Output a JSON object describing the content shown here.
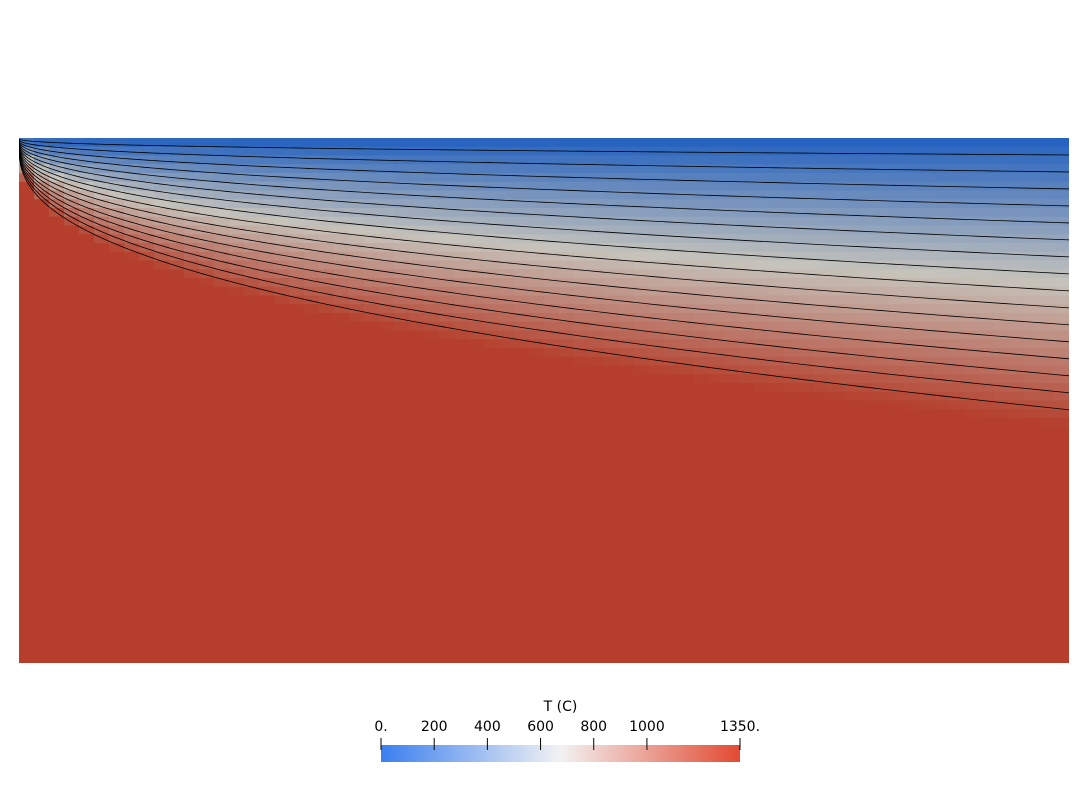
{
  "chart_data": {
    "type": "heatmap",
    "field": "T",
    "colormap": {
      "name": "Cool to Warm",
      "stops": [
        "#3b4cc0",
        "#dddddd",
        "#b40426"
      ],
      "domain_colors": {
        "low": "#2160c0",
        "mid": "#c6c3bb",
        "high": "#b53f2c"
      }
    },
    "contour_lines": 16,
    "colorbar": {
      "title": "T (C)",
      "range": [
        0,
        1350
      ],
      "ticks": [
        {
          "value": 0,
          "label": "0."
        },
        {
          "value": 200,
          "label": "200"
        },
        {
          "value": 400,
          "label": "400"
        },
        {
          "value": 600,
          "label": "600"
        },
        {
          "value": 800,
          "label": "800"
        },
        {
          "value": 1000,
          "label": "1000"
        },
        {
          "value": 1350,
          "label": "1350."
        }
      ]
    }
  }
}
